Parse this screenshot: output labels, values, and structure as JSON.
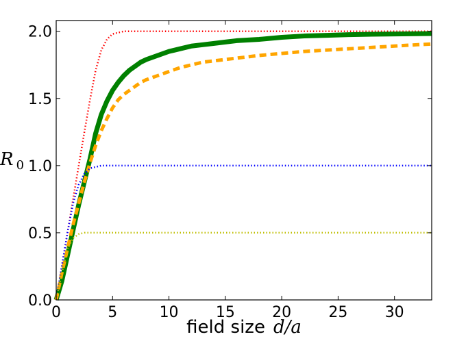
{
  "chart_data": {
    "type": "line",
    "title": "",
    "xlabel_text": "field size",
    "xlabel_math": "d/a",
    "ylabel_main": "R",
    "ylabel_sub": "0",
    "xlim": [
      0,
      33.3
    ],
    "ylim": [
      0,
      2.08
    ],
    "x_ticks": [
      0,
      5,
      10,
      15,
      20,
      25,
      30
    ],
    "x_tick_labels": [
      "0",
      "5",
      "10",
      "15",
      "20",
      "25",
      "30"
    ],
    "y_ticks": [
      0,
      0.5,
      1.0,
      1.5,
      2.0
    ],
    "y_tick_labels": [
      "0.0",
      "0.5",
      "1.0",
      "1.5",
      "2.0"
    ],
    "grid": false,
    "x": [
      0,
      0.5,
      1,
      1.5,
      2,
      2.5,
      3,
      3.5,
      4,
      4.5,
      5,
      5.5,
      6,
      6.5,
      7,
      7.5,
      8,
      9,
      10,
      11,
      12,
      13,
      14,
      15,
      16,
      18,
      20,
      22,
      24,
      26,
      28,
      30,
      32,
      33.3
    ],
    "series": [
      {
        "name": "red dotted (limit 2.0)",
        "color": "#ff0000",
        "style": "dotted",
        "values": [
          0,
          0.25,
          0.5,
          0.75,
          1.0,
          1.25,
          1.49,
          1.71,
          1.86,
          1.94,
          1.98,
          1.99,
          2.0,
          2.0,
          2.0,
          2.0,
          2.0,
          2.0,
          2.0,
          2.0,
          2.0,
          2.0,
          2.0,
          2.0,
          2.0,
          2.0,
          2.0,
          2.0,
          2.0,
          2.0,
          2.0,
          2.0,
          2.0,
          2.0
        ]
      },
      {
        "name": "green solid",
        "color": "#008000",
        "style": "solid",
        "values": [
          0,
          0.14,
          0.33,
          0.52,
          0.71,
          0.88,
          1.05,
          1.24,
          1.38,
          1.48,
          1.56,
          1.62,
          1.67,
          1.71,
          1.74,
          1.77,
          1.79,
          1.82,
          1.85,
          1.87,
          1.89,
          1.9,
          1.91,
          1.92,
          1.93,
          1.94,
          1.955,
          1.965,
          1.97,
          1.975,
          1.978,
          1.98,
          1.982,
          1.983
        ]
      },
      {
        "name": "orange dashed",
        "color": "#ffa500",
        "style": "dashed",
        "values": [
          0,
          0.2,
          0.38,
          0.56,
          0.72,
          0.88,
          1.02,
          1.15,
          1.26,
          1.35,
          1.43,
          1.49,
          1.53,
          1.56,
          1.59,
          1.62,
          1.64,
          1.67,
          1.7,
          1.73,
          1.75,
          1.77,
          1.78,
          1.79,
          1.8,
          1.82,
          1.835,
          1.85,
          1.86,
          1.87,
          1.88,
          1.89,
          1.9,
          1.905
        ]
      },
      {
        "name": "blue dotted (limit 1.0)",
        "color": "#0000ff",
        "style": "dotted",
        "values": [
          0,
          0.25,
          0.5,
          0.72,
          0.86,
          0.94,
          0.98,
          0.99,
          1.0,
          1.0,
          1.0,
          1.0,
          1.0,
          1.0,
          1.0,
          1.0,
          1.0,
          1.0,
          1.0,
          1.0,
          1.0,
          1.0,
          1.0,
          1.0,
          1.0,
          1.0,
          1.0,
          1.0,
          1.0,
          1.0,
          1.0,
          1.0,
          1.0,
          1.0
        ]
      },
      {
        "name": "yellow dotted (limit 0.5)",
        "color": "#bfbf00",
        "style": "dotted",
        "values": [
          0,
          0.2,
          0.38,
          0.46,
          0.49,
          0.5,
          0.5,
          0.5,
          0.5,
          0.5,
          0.5,
          0.5,
          0.5,
          0.5,
          0.5,
          0.5,
          0.5,
          0.5,
          0.5,
          0.5,
          0.5,
          0.5,
          0.5,
          0.5,
          0.5,
          0.5,
          0.5,
          0.5,
          0.5,
          0.5,
          0.5,
          0.5,
          0.5,
          0.5
        ]
      }
    ]
  }
}
